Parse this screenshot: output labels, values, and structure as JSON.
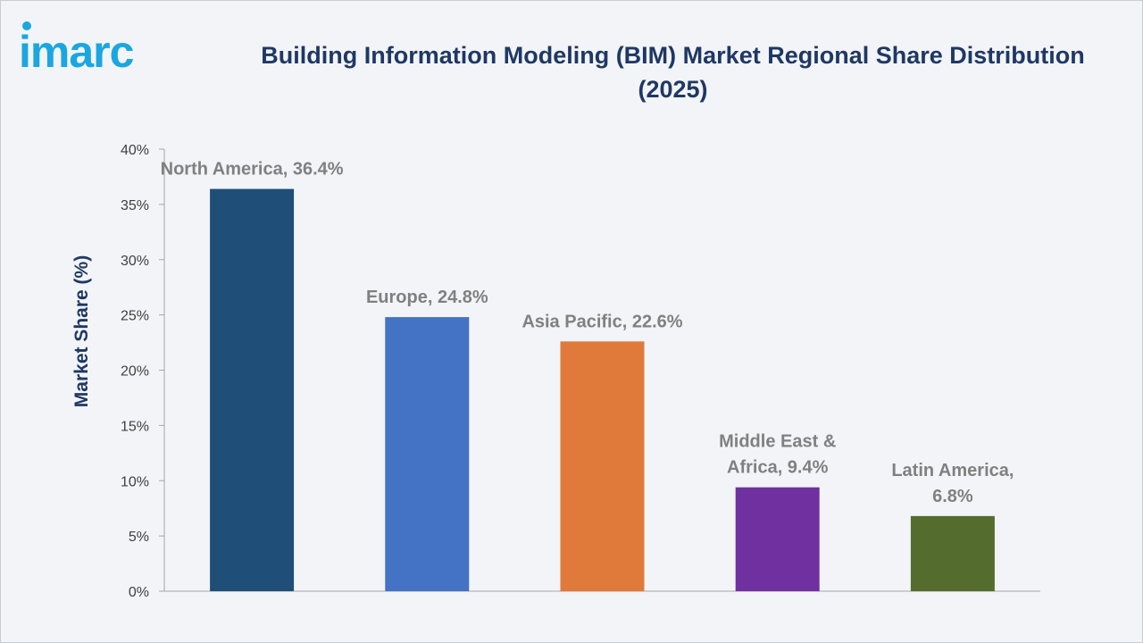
{
  "logo": {
    "text": "imarc",
    "color": "#1aa7e0"
  },
  "chart_data": {
    "type": "bar",
    "title": "Building Information Modeling (BIM) Market Regional Share Distribution (2025)",
    "title_lines": [
      "Building Information Modeling (BIM) Market Regional Share Distribution",
      "(2025)"
    ],
    "ylabel": "Market Share (%)",
    "xlabel": "",
    "ylim": [
      0,
      40
    ],
    "yticks": [
      0,
      5,
      10,
      15,
      20,
      25,
      30,
      35,
      40
    ],
    "ytick_labels": [
      "0%",
      "5%",
      "10%",
      "15%",
      "20%",
      "25%",
      "30%",
      "35%",
      "40%"
    ],
    "grid": false,
    "legend": "none",
    "categories": [
      "North America",
      "Europe",
      "Asia Pacific",
      "Middle East & Africa",
      "Latin America"
    ],
    "values": [
      36.4,
      24.8,
      22.6,
      9.4,
      6.8
    ],
    "data_labels": [
      [
        "North America, 36.4%"
      ],
      [
        "Europe, 24.8%"
      ],
      [
        "Asia Pacific, 22.6%"
      ],
      [
        "Middle East &",
        "Africa, 9.4%"
      ],
      [
        "Latin America,",
        "6.8%"
      ]
    ],
    "colors": [
      "#1f4e79",
      "#4472c4",
      "#e07a3a",
      "#7030a0",
      "#546d2e"
    ]
  }
}
